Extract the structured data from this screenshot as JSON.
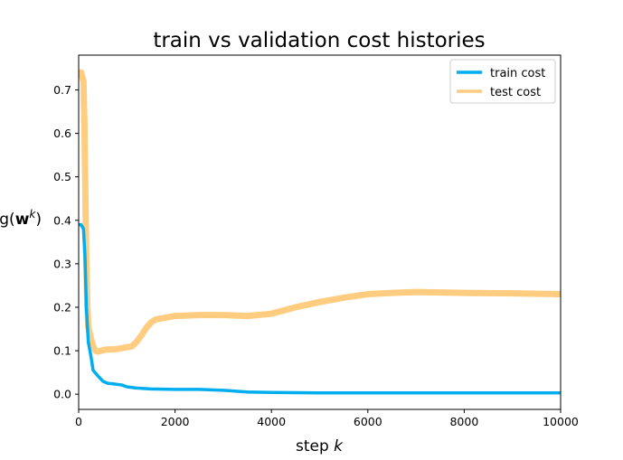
{
  "chart_data": {
    "type": "line",
    "title": "train vs validation cost histories",
    "xlabel_prefix": "step ",
    "xlabel_var": "k",
    "ylabel_g": "g(",
    "ylabel_w": "w",
    "ylabel_sup": "k",
    "ylabel_close": ")",
    "xlim": [
      0,
      10000
    ],
    "ylim": [
      -0.035,
      0.78
    ],
    "x_ticks": [
      0,
      2000,
      4000,
      6000,
      8000,
      10000
    ],
    "x_tick_labels": [
      "0",
      "2000",
      "4000",
      "6000",
      "8000",
      "10000"
    ],
    "y_ticks": [
      0.0,
      0.1,
      0.2,
      0.3,
      0.4,
      0.5,
      0.6,
      0.7
    ],
    "y_tick_labels": [
      "0.0",
      "0.1",
      "0.2",
      "0.3",
      "0.4",
      "0.5",
      "0.6",
      "0.7"
    ],
    "grid": false,
    "legend_position": "top-right",
    "series": [
      {
        "name": "train cost",
        "color": "#00aeef",
        "x": [
          0,
          50,
          100,
          130,
          160,
          200,
          250,
          300,
          400,
          500,
          600,
          700,
          900,
          1000,
          1200,
          1500,
          2000,
          2500,
          3000,
          3500,
          4000,
          5000,
          6000,
          7000,
          8000,
          9000,
          10000
        ],
        "y": [
          0.39,
          0.39,
          0.38,
          0.32,
          0.2,
          0.12,
          0.09,
          0.055,
          0.042,
          0.03,
          0.025,
          0.024,
          0.021,
          0.017,
          0.014,
          0.012,
          0.011,
          0.011,
          0.009,
          0.005,
          0.004,
          0.003,
          0.003,
          0.003,
          0.003,
          0.003,
          0.003
        ]
      },
      {
        "name": "test cost",
        "color": "#ffcc80",
        "x": [
          0,
          50,
          100,
          120,
          140,
          160,
          180,
          200,
          250,
          300,
          350,
          400,
          500,
          600,
          700,
          800,
          900,
          1000,
          1100,
          1200,
          1300,
          1400,
          1500,
          1600,
          1800,
          2000,
          2500,
          3000,
          3500,
          4000,
          4500,
          5000,
          5500,
          6000,
          6500,
          7000,
          8000,
          9000,
          10000
        ],
        "y": [
          0.74,
          0.74,
          0.72,
          0.62,
          0.45,
          0.3,
          0.2,
          0.155,
          0.13,
          0.11,
          0.1,
          0.098,
          0.101,
          0.103,
          0.103,
          0.104,
          0.106,
          0.108,
          0.11,
          0.12,
          0.135,
          0.152,
          0.165,
          0.172,
          0.176,
          0.18,
          0.182,
          0.182,
          0.18,
          0.185,
          0.2,
          0.212,
          0.222,
          0.23,
          0.233,
          0.235,
          0.233,
          0.232,
          0.23
        ]
      }
    ]
  }
}
